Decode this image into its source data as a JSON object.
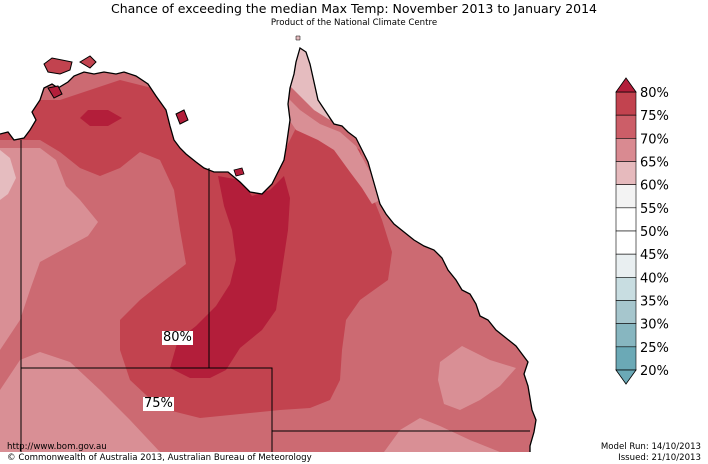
{
  "header": {
    "title": "Chance of exceeding the median Max Temp: November 2013 to January 2014",
    "subtitle": "Product of the National Climate Centre"
  },
  "map_labels": {
    "label_80": "80%",
    "label_75": "75%"
  },
  "legend": {
    "items": [
      {
        "label": "80%",
        "color": "#c2434f"
      },
      {
        "label": "75%",
        "color": "#cc5e68"
      },
      {
        "label": "70%",
        "color": "#d98a91"
      },
      {
        "label": "65%",
        "color": "#e6babd"
      },
      {
        "label": "60%",
        "color": "#f3f3f3"
      },
      {
        "label": "55%",
        "color": "#ffffff"
      },
      {
        "label": "50%",
        "color": "#ffffff"
      },
      {
        "label": "45%",
        "color": "#e9eff1"
      },
      {
        "label": "40%",
        "color": "#c8dde1"
      },
      {
        "label": "35%",
        "color": "#a6c6cd"
      },
      {
        "label": "30%",
        "color": "#87b6c0"
      },
      {
        "label": "25%",
        "color": "#6ba9b6"
      },
      {
        "label": "20%",
        "color": "#6ba9b6"
      }
    ],
    "top_arrow_color": "#b31e3a",
    "bottom_arrow_color": "#6ba9b6"
  },
  "footer": {
    "url": "http://www.bom.gov.au",
    "copyright": "©  Commonwealth of Australia 2013, Australian Bureau of Meteorology",
    "model_run": "Model Run: 14/10/2013",
    "issued": "Issued: 21/10/2013"
  },
  "palette": {
    "p80": "#b31e3a",
    "p75": "#c2434f",
    "p70": "#cc6a72",
    "p65": "#d98f95",
    "p60": "#e5bcbf"
  }
}
